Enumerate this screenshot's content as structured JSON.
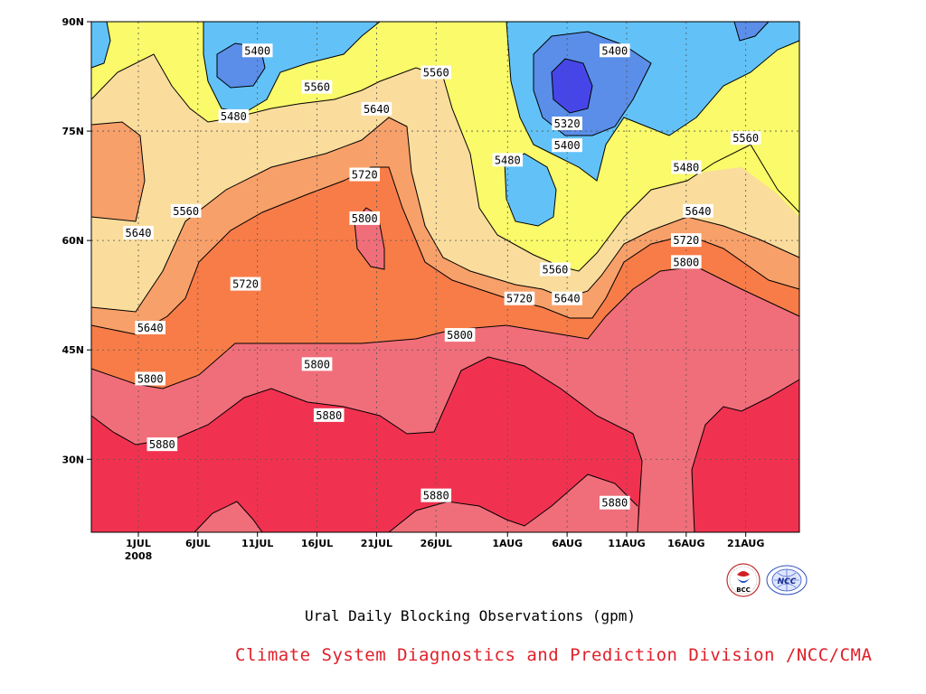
{
  "chart_data": {
    "type": "heatmap",
    "subtype": "filled-contour",
    "title": "",
    "xlabel": "",
    "ylabel": "",
    "x_ticks": [
      "1JUL",
      "6JUL",
      "11JUL",
      "16JUL",
      "21JUL",
      "26JUL",
      "1AUG",
      "6AUG",
      "11AUG",
      "16AUG",
      "21AUG"
    ],
    "x_year_label": "2008",
    "y_ticks": [
      "30N",
      "45N",
      "60N",
      "75N",
      "90N"
    ],
    "y_range_deg": [
      20,
      90
    ],
    "grid": true,
    "grid_style": "dotted",
    "contour_levels": [
      5320,
      5400,
      5480,
      5560,
      5640,
      5720,
      5800,
      5880
    ],
    "fill_colors": {
      "below_5320": "#4646e8",
      "5320_5400": "#5a8ee8",
      "5400_5480": "#62c2f8",
      "5480_5560": "#fafa6a",
      "5560_5640": "#fadc9c",
      "5640_5720": "#f8a06a",
      "5720_5800": "#f87c48",
      "5800_5880": "#f06e7a",
      "above_5880": "#f03250"
    },
    "contour_labels": [
      {
        "value": "5400",
        "date": "11JUL",
        "lat": "86N"
      },
      {
        "value": "5560",
        "date": "16JUL",
        "lat": "81N"
      },
      {
        "value": "5560",
        "date": "26JUL",
        "lat": "83N"
      },
      {
        "value": "5480",
        "date": "9JUL",
        "lat": "77N"
      },
      {
        "value": "5640",
        "date": "21JUL",
        "lat": "78N"
      },
      {
        "value": "5720",
        "date": "20JUL",
        "lat": "69N"
      },
      {
        "value": "5800",
        "date": "20JUL",
        "lat": "63N"
      },
      {
        "value": "5560",
        "date": "5JUL",
        "lat": "64N"
      },
      {
        "value": "5640",
        "date": "1JUL",
        "lat": "61N"
      },
      {
        "value": "5720",
        "date": "10JUL",
        "lat": "54N"
      },
      {
        "value": "5640",
        "date": "2JUL",
        "lat": "48N"
      },
      {
        "value": "5800",
        "date": "2JUL",
        "lat": "41N"
      },
      {
        "value": "5880",
        "date": "3JUL",
        "lat": "32N"
      },
      {
        "value": "5800",
        "date": "16JUL",
        "lat": "43N"
      },
      {
        "value": "5880",
        "date": "17JUL",
        "lat": "36N"
      },
      {
        "value": "5800",
        "date": "28JUL",
        "lat": "47N"
      },
      {
        "value": "5720",
        "date": "2AUG",
        "lat": "52N"
      },
      {
        "value": "5880",
        "date": "26JUL",
        "lat": "25N"
      },
      {
        "value": "5880",
        "date": "10AUG",
        "lat": "24N"
      },
      {
        "value": "5480",
        "date": "1AUG",
        "lat": "71N"
      },
      {
        "value": "5320",
        "date": "6AUG",
        "lat": "76N"
      },
      {
        "value": "5400",
        "date": "6AUG",
        "lat": "73N"
      },
      {
        "value": "5400",
        "date": "10AUG",
        "lat": "86N"
      },
      {
        "value": "5560",
        "date": "5AUG",
        "lat": "56N"
      },
      {
        "value": "5640",
        "date": "6AUG",
        "lat": "52N"
      },
      {
        "value": "5480",
        "date": "16AUG",
        "lat": "70N"
      },
      {
        "value": "5560",
        "date": "21AUG",
        "lat": "74N"
      },
      {
        "value": "5640",
        "date": "17AUG",
        "lat": "64N"
      },
      {
        "value": "5720",
        "date": "16AUG",
        "lat": "60N"
      },
      {
        "value": "5800",
        "date": "16AUG",
        "lat": "57N"
      }
    ]
  },
  "caption": "Ural Daily Blocking Observations (gpm)",
  "credit": "Climate System Diagnostics and Prediction Division /NCC/CMA",
  "logos": {
    "bcc": "BCC",
    "ncc": "NCC"
  }
}
